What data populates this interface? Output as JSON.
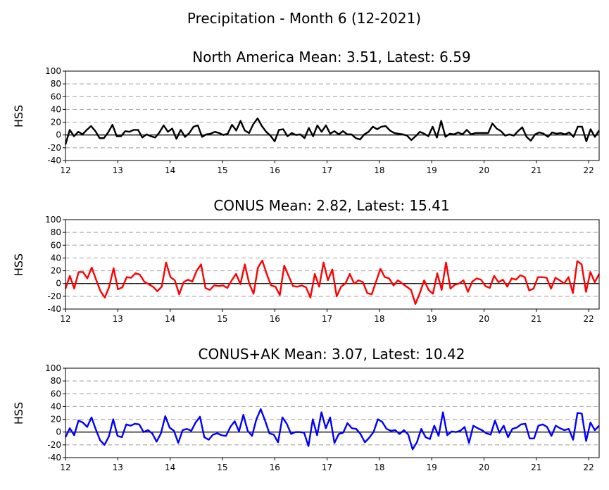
{
  "figure": {
    "suptitle": "Precipitation - Month 6 (12-2021)"
  },
  "chart_data": [
    {
      "type": "line",
      "title": "North America Mean: 3.51, Latest: 6.59",
      "ylabel": "HSS",
      "xlabel": "",
      "color": "#000000",
      "grid": "dashed horizontal at y ticks",
      "xlim": [
        12,
        22.2
      ],
      "ylim": [
        -40,
        100
      ],
      "xticks": [
        12,
        13,
        14,
        15,
        16,
        17,
        18,
        19,
        20,
        21,
        22
      ],
      "yticks": [
        -40,
        -20,
        0,
        20,
        40,
        60,
        80,
        100
      ],
      "reference_line_y": 0,
      "values": [
        -15,
        8,
        -2,
        5,
        1,
        8,
        14,
        6,
        -5,
        -5,
        4,
        16,
        -2,
        -2,
        6,
        5,
        8,
        8,
        -4,
        1,
        -2,
        -4,
        4,
        15,
        5,
        10,
        -6,
        8,
        -3,
        3,
        13,
        15,
        -3,
        1,
        2,
        5,
        3,
        0,
        2,
        16,
        7,
        22,
        7,
        3,
        17,
        26,
        14,
        5,
        -1,
        -10,
        8,
        9,
        -2,
        3,
        0,
        1,
        -5,
        11,
        -2,
        15,
        5,
        15,
        2,
        6,
        1,
        6,
        1,
        1,
        -5,
        -7,
        1,
        5,
        13,
        9,
        13,
        14,
        7,
        3,
        2,
        1,
        -1,
        -8,
        -2,
        5,
        2,
        -2,
        13,
        -4,
        22,
        -3,
        2,
        1,
        4,
        1,
        8,
        1,
        3,
        3,
        3,
        3,
        18,
        10,
        6,
        -1,
        1,
        -1,
        6,
        12,
        -3,
        -9,
        1,
        4,
        2,
        -3,
        4,
        2,
        3,
        1,
        4,
        -3,
        13,
        13,
        -10,
        9,
        -3,
        7
      ]
    },
    {
      "type": "line",
      "title": "CONUS Mean: 2.82, Latest: 15.41",
      "ylabel": "HSS",
      "xlabel": "",
      "color": "#ff0000",
      "grid": "dashed horizontal at y ticks",
      "xlim": [
        12,
        22.2
      ],
      "ylim": [
        -40,
        100
      ],
      "xticks": [
        12,
        13,
        14,
        15,
        16,
        17,
        18,
        19,
        20,
        21,
        22
      ],
      "yticks": [
        -40,
        -20,
        0,
        20,
        40,
        60,
        80,
        100
      ],
      "reference_line_y": 0,
      "values": [
        -8,
        12,
        -8,
        18,
        18,
        8,
        25,
        6,
        -12,
        -22,
        -5,
        24,
        -9,
        -6,
        10,
        9,
        16,
        14,
        3,
        -1,
        -5,
        -12,
        -5,
        33,
        10,
        5,
        -17,
        2,
        6,
        3,
        20,
        30,
        -7,
        -10,
        -3,
        -4,
        -3,
        -7,
        5,
        15,
        -1,
        30,
        0,
        -16,
        25,
        36,
        15,
        -3,
        -5,
        -18,
        28,
        12,
        -4,
        -5,
        -3,
        -6,
        -22,
        15,
        -5,
        33,
        5,
        22,
        -20,
        -5,
        0,
        15,
        0,
        5,
        2,
        -15,
        -17,
        3,
        23,
        10,
        8,
        -3,
        5,
        0,
        -5,
        -10,
        -32,
        -15,
        5,
        -10,
        -16,
        16,
        -10,
        33,
        -8,
        -2,
        0,
        5,
        -13,
        3,
        8,
        6,
        -4,
        -7,
        12,
        2,
        6,
        -5,
        8,
        6,
        13,
        10,
        -11,
        -8,
        10,
        10,
        9,
        -8,
        9,
        5,
        0,
        10,
        -15,
        35,
        30,
        -13,
        18,
        2,
        15
      ]
    },
    {
      "type": "line",
      "title": "CONUS+AK Mean: 3.07, Latest: 10.42",
      "ylabel": "HSS",
      "xlabel": "",
      "color": "#0000ff",
      "grid": "dashed horizontal at y ticks",
      "xlim": [
        12,
        22.2
      ],
      "ylim": [
        -40,
        100
      ],
      "xticks": [
        12,
        13,
        14,
        15,
        16,
        17,
        18,
        19,
        20,
        21,
        22
      ],
      "yticks": [
        -40,
        -20,
        0,
        20,
        40,
        60,
        80,
        100
      ],
      "reference_line_y": 0,
      "values": [
        -8,
        6,
        -5,
        18,
        15,
        8,
        23,
        4,
        -13,
        -20,
        -7,
        20,
        -6,
        -8,
        12,
        10,
        13,
        12,
        0,
        3,
        -2,
        -15,
        -2,
        25,
        7,
        2,
        -17,
        3,
        5,
        2,
        15,
        24,
        -8,
        -12,
        -4,
        -2,
        -5,
        -6,
        8,
        17,
        1,
        27,
        2,
        -6,
        20,
        36,
        18,
        -2,
        -4,
        -16,
        23,
        13,
        -3,
        0,
        0,
        -1,
        -22,
        20,
        -5,
        31,
        6,
        23,
        -17,
        -3,
        -1,
        14,
        6,
        5,
        -3,
        -16,
        -9,
        0,
        20,
        16,
        5,
        2,
        3,
        -3,
        3,
        -4,
        -27,
        -16,
        5,
        -8,
        -11,
        10,
        -6,
        31,
        -5,
        1,
        0,
        2,
        8,
        -17,
        10,
        6,
        3,
        -2,
        -4,
        18,
        -1,
        10,
        -8,
        5,
        7,
        12,
        13,
        -10,
        -10,
        10,
        12,
        8,
        -6,
        10,
        6,
        3,
        5,
        -12,
        30,
        29,
        -14,
        15,
        3,
        10
      ]
    }
  ]
}
